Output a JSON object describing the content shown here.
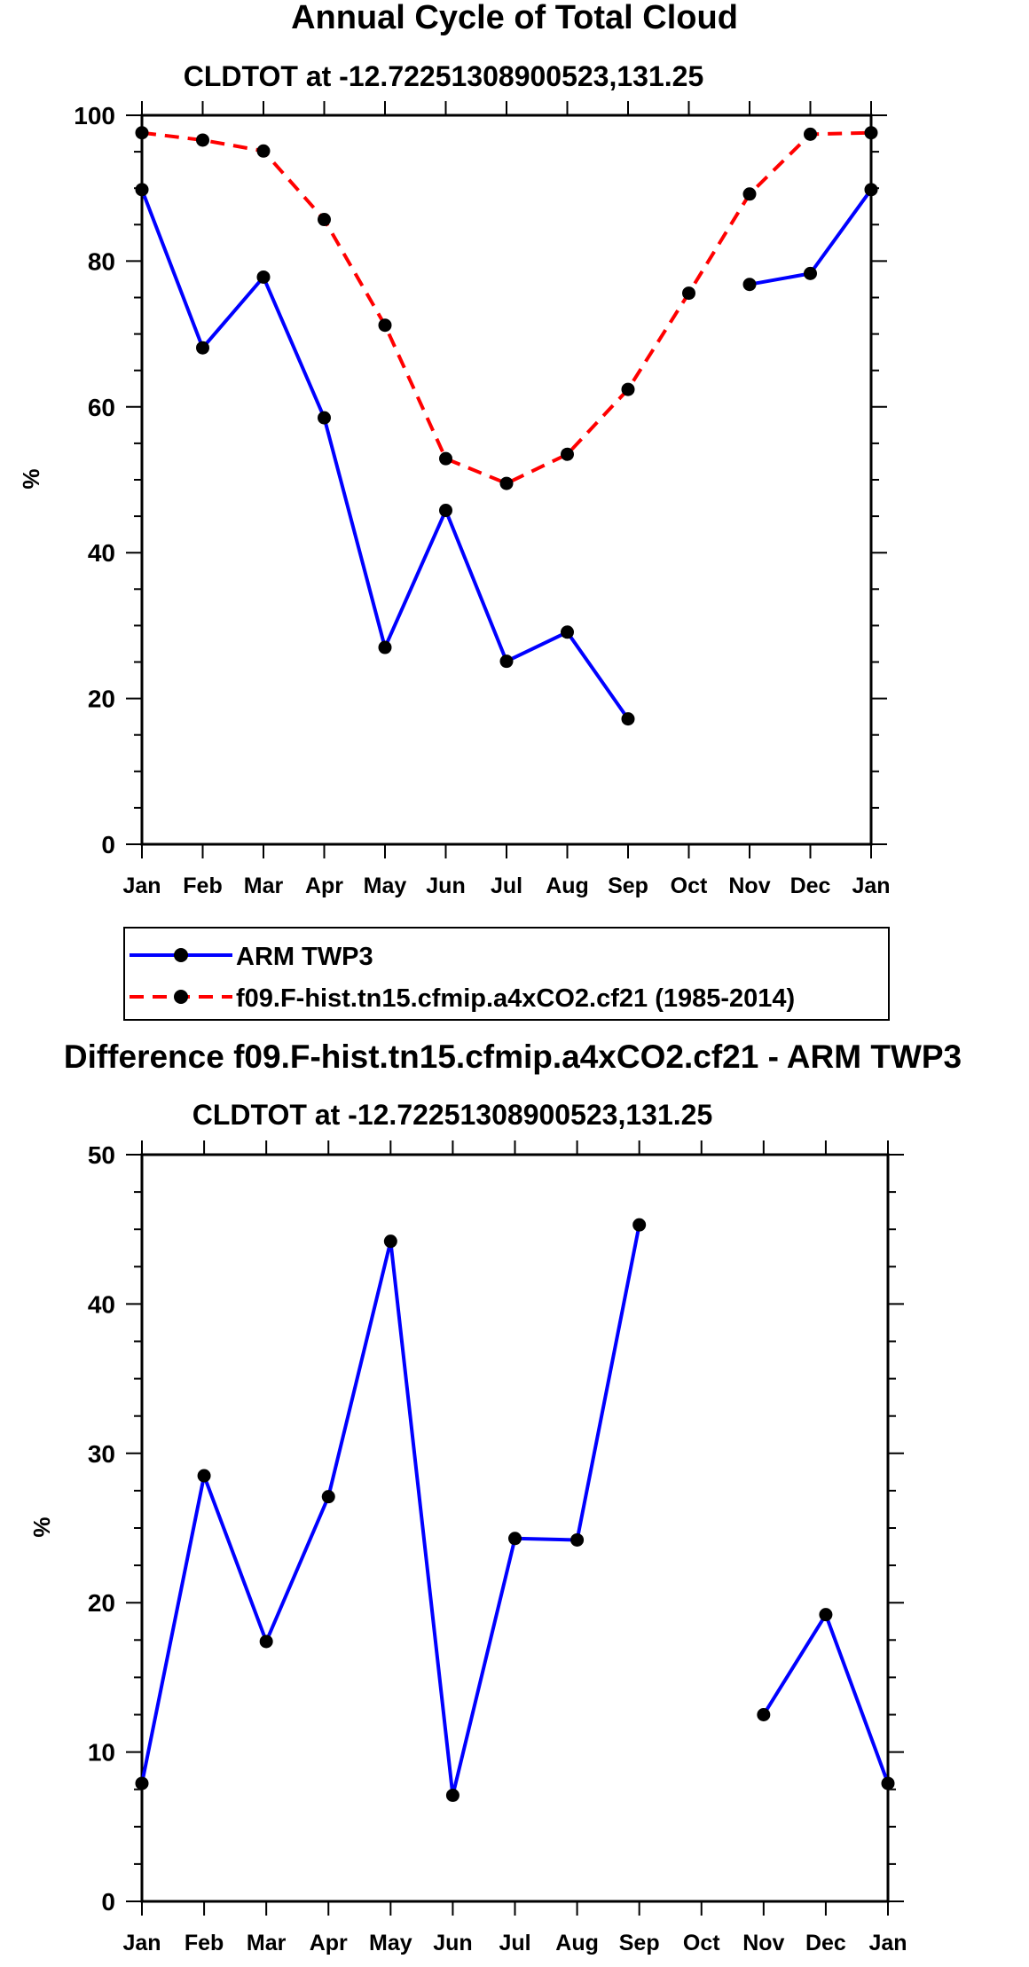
{
  "chart_data": [
    {
      "type": "line",
      "title": "Annual Cycle of Total Cloud",
      "subtitle": "CLDTOT at -12.72251308900523,131.25",
      "xlabel": "",
      "ylabel": "%",
      "categories": [
        "Jan",
        "Feb",
        "Mar",
        "Apr",
        "May",
        "Jun",
        "Jul",
        "Aug",
        "Sep",
        "Oct",
        "Nov",
        "Dec",
        "Jan"
      ],
      "ylim": [
        0,
        100
      ],
      "yticks": [
        "0",
        "20",
        "40",
        "60",
        "80",
        "100"
      ],
      "legend_position": "bottom",
      "series": [
        {
          "name": "ARM TWP3",
          "color": "#0000ff",
          "dash": "solid",
          "values": [
            89.8,
            68.1,
            77.8,
            58.5,
            27.0,
            45.8,
            25.1,
            29.1,
            17.2,
            null,
            76.8,
            78.3,
            89.8
          ]
        },
        {
          "name": "f09.F-hist.tn15.cfmip.a4xCO2.cf21 (1985-2014)",
          "color": "#ff0000",
          "dash": "dashed",
          "values": [
            97.6,
            96.6,
            95.1,
            85.7,
            71.2,
            52.9,
            49.5,
            53.5,
            62.4,
            75.6,
            89.2,
            97.4,
            97.6
          ]
        }
      ]
    },
    {
      "type": "line",
      "title": "Difference f09.F-hist.tn15.cfmip.a4xCO2.cf21 - ARM TWP3",
      "subtitle": "CLDTOT at -12.72251308900523,131.25",
      "xlabel": "",
      "ylabel": "%",
      "categories": [
        "Jan",
        "Feb",
        "Mar",
        "Apr",
        "May",
        "Jun",
        "Jul",
        "Aug",
        "Sep",
        "Oct",
        "Nov",
        "Dec",
        "Jan"
      ],
      "ylim": [
        0,
        50
      ],
      "yticks": [
        "0",
        "10",
        "20",
        "30",
        "40",
        "50"
      ],
      "series": [
        {
          "name": "Difference",
          "color": "#0000ff",
          "dash": "solid",
          "values": [
            7.9,
            28.5,
            17.4,
            27.1,
            44.2,
            7.1,
            24.3,
            24.2,
            45.3,
            null,
            12.5,
            19.2,
            7.9
          ]
        }
      ]
    }
  ]
}
